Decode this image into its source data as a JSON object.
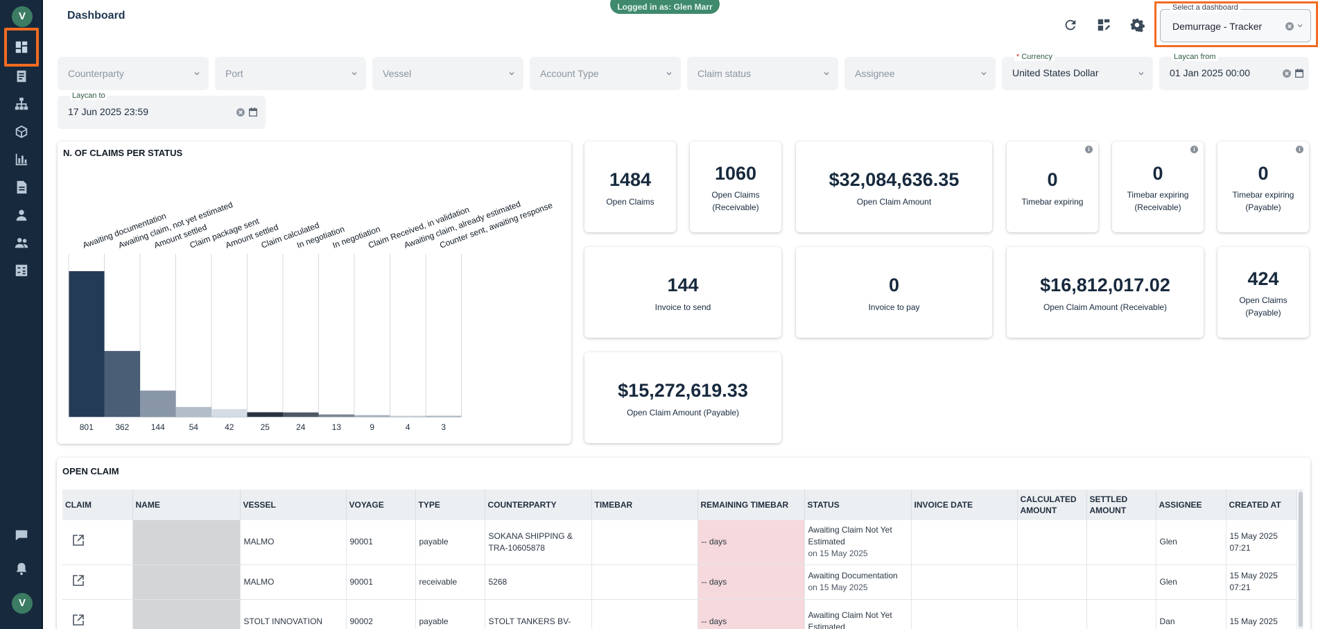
{
  "header": {
    "title": "Dashboard",
    "logged_pill": "Logged in as: Glen Marr",
    "icons": [
      "refresh-icon",
      "dashboard-edit-icon",
      "gear-icon"
    ],
    "dashboard_select": {
      "label": "Select a dashboard",
      "value": "Demurrage - Tracker"
    }
  },
  "sidebar": {
    "items": [
      "dashboard-icon",
      "claims-icon",
      "org-chart-icon",
      "cube-icon",
      "bar-chart-icon",
      "document-icon",
      "person-icon",
      "people-icon",
      "calculator-icon"
    ],
    "bottom": [
      "chat-icon",
      "bell-icon"
    ]
  },
  "filters": {
    "counterparty": "Counterparty",
    "port": "Port",
    "vessel": "Vessel",
    "account_type": "Account Type",
    "claim_status": "Claim status",
    "assignee": "Assignee",
    "currency": {
      "label": "Currency",
      "required_mark": "*",
      "value": "United States Dollar"
    },
    "laycan_from": {
      "label": "Laycan from",
      "value": "01 Jan 2025 00:00"
    },
    "laycan_to": {
      "label": "Laycan to",
      "value": "17 Jun 2025 23:59"
    }
  },
  "chart_data": {
    "type": "bar",
    "title": "N. OF CLAIMS PER STATUS",
    "categories": [
      "Awaiting documentation",
      "Awaiting claim, not yet estimated",
      "Amount settled",
      "Claim package sent",
      "Amount settled",
      "Claim calculated",
      "In negotiation",
      "In negotiation",
      "Claim Received, in validation",
      "Awaiting claim, already estimated",
      "Counter sent, awaiting response"
    ],
    "values": [
      801,
      362,
      144,
      54,
      42,
      25,
      24,
      13,
      9,
      4,
      3
    ],
    "colors": [
      "#243b55",
      "#4a5e76",
      "#8896a8",
      "#b3bdc9",
      "#d5dce4",
      "#2a3340",
      "#4e5966",
      "#7b8592",
      "#a6aeb8",
      "#c9ced5",
      "#aeb6c0"
    ],
    "ylim": [
      0,
      801
    ]
  },
  "kpis": {
    "open_claims": {
      "value": "1484",
      "label": "Open Claims"
    },
    "open_claims_receivable": {
      "value": "1060",
      "label": "Open Claims (Receivable)"
    },
    "open_claim_amount": {
      "value": "$32,084,636.35",
      "label": "Open Claim Amount"
    },
    "timebar_expiring": {
      "value": "0",
      "label": "Timebar expiring"
    },
    "timebar_expiring_receivable": {
      "value": "0",
      "label": "Timebar expiring (Receivable)"
    },
    "timebar_expiring_payable": {
      "value": "0",
      "label": "Timebar expiring (Payable)"
    },
    "invoice_to_send": {
      "value": "144",
      "label": "Invoice to send"
    },
    "invoice_to_pay": {
      "value": "0",
      "label": "Invoice to pay"
    },
    "open_claim_amount_receivable": {
      "value": "$16,812,017.02",
      "label": "Open Claim Amount (Receivable)"
    },
    "open_claims_payable": {
      "value": "424",
      "label": "Open Claims (Payable)"
    },
    "open_claim_amount_payable": {
      "value": "$15,272,619.33",
      "label": "Open Claim Amount (Payable)"
    },
    "info": "i"
  },
  "table": {
    "title": "OPEN CLAIM",
    "columns": [
      "CLAIM",
      "NAME",
      "VESSEL",
      "VOYAGE",
      "TYPE",
      "COUNTERPARTY",
      "TIMEBAR",
      "REMAINING TIMEBAR",
      "STATUS",
      "INVOICE DATE",
      "CALCULATED AMOUNT",
      "SETTLED AMOUNT",
      "ASSIGNEE",
      "CREATED AT"
    ],
    "rows": [
      {
        "vessel": "MALMO",
        "voyage": "90001",
        "type": "payable",
        "counterparty": "SOKANA SHIPPING & TRA-10605878",
        "remaining": "-- days",
        "status": "Awaiting Claim Not Yet Estimated",
        "status_date": "on 15 May 2025",
        "assignee": "Glen",
        "created": "15 May 2025 07:21"
      },
      {
        "vessel": "MALMO",
        "voyage": "90001",
        "type": "receivable",
        "counterparty": "5268",
        "remaining": "-- days",
        "status": "Awaiting Documentation",
        "status_date": "on 15 May 2025",
        "assignee": "Glen",
        "created": "15 May 2025 07:21"
      },
      {
        "vessel": "STOLT INNOVATION",
        "voyage": "90002",
        "type": "payable",
        "counterparty": "STOLT TANKERS BV-",
        "remaining": "-- days",
        "status": "Awaiting Claim Not Yet Estimated",
        "status_date": "",
        "assignee": "Dan",
        "created": "15 May 2025"
      }
    ]
  }
}
